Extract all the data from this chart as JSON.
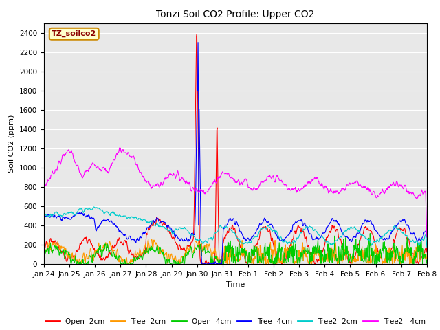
{
  "title": "Tonzi Soil CO2 Profile: Upper CO2",
  "xlabel": "Time",
  "ylabel": "Soil CO2 (ppm)",
  "legend_label": "TZ_soilco2",
  "legend_label_color": "#8b0000",
  "legend_box_edge_color": "#cc8800",
  "legend_box_face_color": "#ffffcc",
  "ylim": [
    0,
    2500
  ],
  "yticks": [
    0,
    200,
    400,
    600,
    800,
    1000,
    1200,
    1400,
    1600,
    1800,
    2000,
    2200,
    2400
  ],
  "series": {
    "Open -2cm": {
      "color": "#ff0000"
    },
    "Tree -2cm": {
      "color": "#ff9900"
    },
    "Open -4cm": {
      "color": "#00cc00"
    },
    "Tree -4cm": {
      "color": "#0000ff"
    },
    "Tree2 -2cm": {
      "color": "#00cccc"
    },
    "Tree2 - 4cm": {
      "color": "#ff00ff"
    }
  },
  "background_color": "#e8e8e8",
  "grid_color": "#ffffff"
}
